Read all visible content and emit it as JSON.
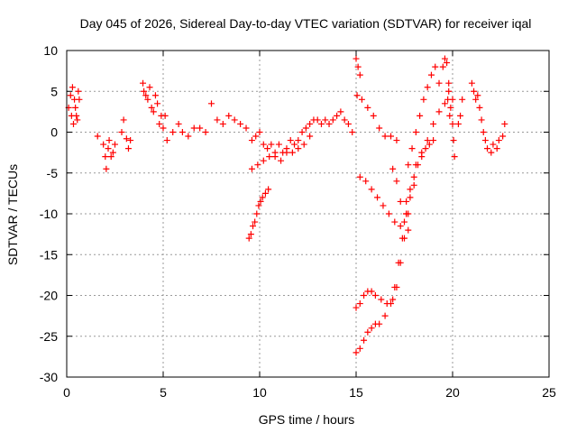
{
  "chart_data": {
    "type": "scatter",
    "title": "Day 045 of 2026, Sidereal Day-to-day VTEC variation (SDTVAR) for receiver iqal",
    "xlabel": "GPS time / hours",
    "ylabel": "SDTVAR / TECUs",
    "xlim": [
      0,
      25
    ],
    "ylim": [
      -30,
      10
    ],
    "xticks": [
      "0",
      "5",
      "10",
      "15",
      "20",
      "25"
    ],
    "yticks": [
      "10",
      "5",
      "0",
      "-5",
      "-10",
      "-15",
      "-20",
      "-25",
      "-30"
    ],
    "grid": true,
    "marker": "+",
    "color": "#ff0000",
    "series": [
      {
        "name": "SDTVAR",
        "points": [
          [
            0.1,
            3
          ],
          [
            0.2,
            4.5
          ],
          [
            0.25,
            2
          ],
          [
            0.3,
            5.5
          ],
          [
            0.35,
            1
          ],
          [
            0.4,
            4
          ],
          [
            0.45,
            3
          ],
          [
            0.5,
            2
          ],
          [
            0.55,
            1.5
          ],
          [
            0.6,
            5
          ],
          [
            0.65,
            4
          ],
          [
            1.6,
            -0.5
          ],
          [
            1.9,
            -1.5
          ],
          [
            2.0,
            -3
          ],
          [
            2.05,
            -4.5
          ],
          [
            2.15,
            -2
          ],
          [
            2.2,
            -1
          ],
          [
            2.3,
            -3
          ],
          [
            2.4,
            -2.5
          ],
          [
            2.5,
            -1.5
          ],
          [
            2.85,
            0
          ],
          [
            2.95,
            1.5
          ],
          [
            3.1,
            -0.8
          ],
          [
            3.2,
            -2
          ],
          [
            3.3,
            -1
          ],
          [
            3.95,
            6
          ],
          [
            4.0,
            5
          ],
          [
            4.1,
            4.5
          ],
          [
            4.2,
            4
          ],
          [
            4.3,
            5.5
          ],
          [
            4.4,
            3
          ],
          [
            4.5,
            2.5
          ],
          [
            4.6,
            4.5
          ],
          [
            4.7,
            3.5
          ],
          [
            4.8,
            1
          ],
          [
            4.9,
            2
          ],
          [
            5.0,
            0.5
          ],
          [
            5.1,
            2
          ],
          [
            5.2,
            -1
          ],
          [
            5.5,
            0
          ],
          [
            5.8,
            1
          ],
          [
            6.0,
            0
          ],
          [
            6.3,
            -0.5
          ],
          [
            6.6,
            0.5
          ],
          [
            6.9,
            0.5
          ],
          [
            7.2,
            0
          ],
          [
            7.5,
            3.5
          ],
          [
            7.8,
            1.5
          ],
          [
            8.1,
            1
          ],
          [
            8.4,
            2
          ],
          [
            8.7,
            1.5
          ],
          [
            9.0,
            1
          ],
          [
            9.3,
            0.5
          ],
          [
            9.6,
            -1
          ],
          [
            9.8,
            -0.5
          ],
          [
            10.0,
            0
          ],
          [
            10.2,
            -1.5
          ],
          [
            10.4,
            -2
          ],
          [
            10.6,
            -1.5
          ],
          [
            10.8,
            -2.5
          ],
          [
            11.0,
            -1.5
          ],
          [
            11.2,
            -2.5
          ],
          [
            11.4,
            -2
          ],
          [
            11.6,
            -1
          ],
          [
            11.8,
            -1.5
          ],
          [
            12.0,
            -1
          ],
          [
            12.2,
            0
          ],
          [
            12.4,
            0.5
          ],
          [
            12.6,
            1
          ],
          [
            12.8,
            1.5
          ],
          [
            13.0,
            1.5
          ],
          [
            13.2,
            1
          ],
          [
            13.4,
            1.5
          ],
          [
            13.6,
            1
          ],
          [
            13.8,
            1.5
          ],
          [
            14.0,
            2
          ],
          [
            14.2,
            2.5
          ],
          [
            14.4,
            1.5
          ],
          [
            14.6,
            1
          ],
          [
            14.8,
            0
          ],
          [
            9.6,
            -4.5
          ],
          [
            9.9,
            -4
          ],
          [
            10.2,
            -3.5
          ],
          [
            10.5,
            -3
          ],
          [
            10.8,
            -3
          ],
          [
            11.1,
            -3.5
          ],
          [
            11.4,
            -2.5
          ],
          [
            11.7,
            -2.5
          ],
          [
            12.0,
            -2
          ],
          [
            12.3,
            -1.5
          ],
          [
            12.6,
            -0.5
          ],
          [
            9.45,
            -13
          ],
          [
            9.55,
            -12.5
          ],
          [
            9.65,
            -11.5
          ],
          [
            9.75,
            -11
          ],
          [
            9.85,
            -10
          ],
          [
            9.95,
            -9
          ],
          [
            10.05,
            -8.5
          ],
          [
            10.15,
            -8
          ],
          [
            10.3,
            -7.5
          ],
          [
            10.45,
            -7
          ],
          [
            15.0,
            9
          ],
          [
            15.1,
            8
          ],
          [
            15.2,
            7
          ],
          [
            15.05,
            4.5
          ],
          [
            15.3,
            4
          ],
          [
            15.6,
            3
          ],
          [
            15.9,
            2
          ],
          [
            16.2,
            0.5
          ],
          [
            16.5,
            -0.5
          ],
          [
            16.8,
            -0.5
          ],
          [
            17.1,
            -1
          ],
          [
            15.2,
            -5.5
          ],
          [
            15.5,
            -6
          ],
          [
            15.8,
            -7
          ],
          [
            16.1,
            -8
          ],
          [
            16.4,
            -9
          ],
          [
            16.7,
            -10
          ],
          [
            17.0,
            -11
          ],
          [
            17.3,
            -11.5
          ],
          [
            17.6,
            -10
          ],
          [
            15.0,
            -21.5
          ],
          [
            15.2,
            -21
          ],
          [
            15.4,
            -20
          ],
          [
            15.6,
            -19.5
          ],
          [
            15.8,
            -19.5
          ],
          [
            16.0,
            -20
          ],
          [
            16.3,
            -20.5
          ],
          [
            16.6,
            -21
          ],
          [
            16.9,
            -20.5
          ],
          [
            17.1,
            -19
          ],
          [
            17.3,
            -16
          ],
          [
            17.5,
            -13
          ],
          [
            17.7,
            -10
          ],
          [
            15.0,
            -27
          ],
          [
            15.2,
            -26.5
          ],
          [
            15.4,
            -25.5
          ],
          [
            15.6,
            -24.5
          ],
          [
            15.8,
            -24
          ],
          [
            16.0,
            -23.5
          ],
          [
            16.2,
            -23.5
          ],
          [
            16.5,
            -22.5
          ],
          [
            16.8,
            -21
          ],
          [
            17.0,
            -19
          ],
          [
            17.2,
            -16
          ],
          [
            17.4,
            -13
          ],
          [
            17.6,
            -10
          ],
          [
            17.8,
            -8
          ],
          [
            18.0,
            -6.5
          ],
          [
            16.9,
            -4.5
          ],
          [
            17.1,
            -6
          ],
          [
            17.3,
            -8.5
          ],
          [
            17.5,
            -11
          ],
          [
            17.7,
            -12
          ],
          [
            17.7,
            -4
          ],
          [
            17.9,
            -2
          ],
          [
            18.1,
            0
          ],
          [
            18.3,
            2
          ],
          [
            18.5,
            4
          ],
          [
            18.7,
            5.5
          ],
          [
            18.9,
            7
          ],
          [
            19.1,
            8
          ],
          [
            17.6,
            -8.5
          ],
          [
            17.8,
            -7
          ],
          [
            18.0,
            -5.5
          ],
          [
            18.2,
            -4
          ],
          [
            18.4,
            -3
          ],
          [
            18.6,
            -2
          ],
          [
            18.8,
            -1.5
          ],
          [
            19.0,
            -1
          ],
          [
            18.1,
            -4
          ],
          [
            18.4,
            -2.5
          ],
          [
            18.7,
            -1
          ],
          [
            19.0,
            1
          ],
          [
            19.3,
            2.5
          ],
          [
            19.6,
            3.5
          ],
          [
            19.8,
            5
          ],
          [
            20.0,
            4
          ],
          [
            19.3,
            6
          ],
          [
            19.5,
            8
          ],
          [
            19.6,
            9
          ],
          [
            19.7,
            8.5
          ],
          [
            19.8,
            6
          ],
          [
            19.9,
            3
          ],
          [
            20.0,
            1
          ],
          [
            20.05,
            -1
          ],
          [
            20.1,
            -3
          ],
          [
            19.75,
            4
          ],
          [
            19.85,
            2
          ],
          [
            20.5,
            4
          ],
          [
            20.3,
            1
          ],
          [
            20.4,
            2
          ],
          [
            21.0,
            6
          ],
          [
            21.1,
            5
          ],
          [
            21.2,
            4
          ],
          [
            21.3,
            4.5
          ],
          [
            21.4,
            3
          ],
          [
            21.5,
            1.5
          ],
          [
            21.6,
            0
          ],
          [
            21.7,
            -1
          ],
          [
            21.8,
            -2
          ],
          [
            22.0,
            -2.5
          ],
          [
            22.1,
            -1.5
          ],
          [
            22.3,
            -2
          ],
          [
            22.4,
            -1
          ],
          [
            22.6,
            -0.5
          ],
          [
            22.7,
            1
          ]
        ]
      }
    ]
  }
}
